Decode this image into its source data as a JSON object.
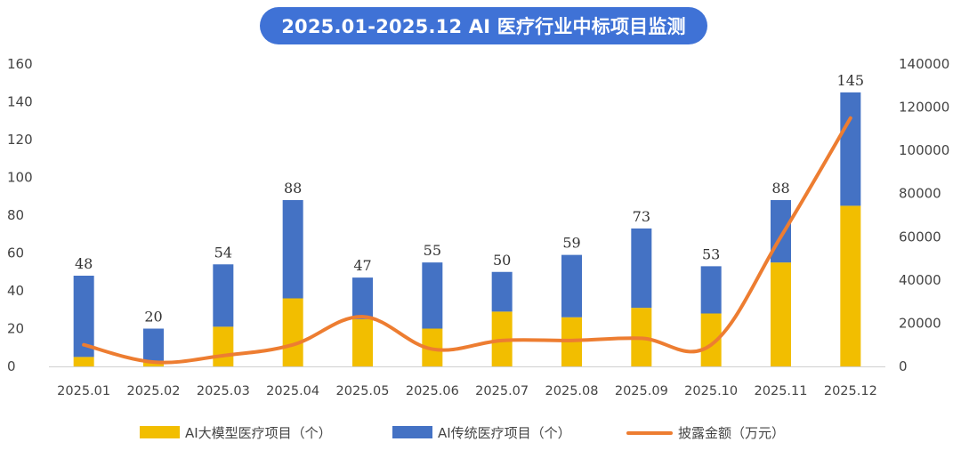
{
  "chart_data": {
    "type": "bar",
    "title": "2025.01-2025.12 AI 医疗行业中标项目监测",
    "categories": [
      "2025.01",
      "2025.02",
      "2025.03",
      "2025.04",
      "2025.05",
      "2025.06",
      "2025.07",
      "2025.08",
      "2025.09",
      "2025.10",
      "2025.11",
      "2025.12"
    ],
    "series": [
      {
        "name": "AI大模型医疗项目（个）",
        "type": "bar",
        "stack": "projects",
        "axis": "left",
        "color": "#F2BE00",
        "values": [
          5,
          3,
          21,
          36,
          25,
          20,
          29,
          26,
          31,
          28,
          55,
          85
        ]
      },
      {
        "name": "AI传统医疗项目（个）",
        "type": "bar",
        "stack": "projects",
        "axis": "left",
        "color": "#4472C4",
        "values": [
          43,
          17,
          33,
          52,
          22,
          35,
          21,
          33,
          42,
          25,
          33,
          60
        ]
      },
      {
        "name": "披露金额（万元）",
        "type": "line",
        "smooth": true,
        "axis": "right",
        "color": "#ED7D31",
        "values": [
          10000,
          2000,
          5000,
          10000,
          23000,
          8000,
          12000,
          12000,
          13000,
          10000,
          60000,
          115000
        ]
      }
    ],
    "totals": [
      48,
      20,
      54,
      88,
      47,
      55,
      50,
      59,
      73,
      53,
      88,
      145
    ],
    "ylim_left": [
      0,
      160
    ],
    "yticks_left": [
      "0",
      "20",
      "40",
      "60",
      "80",
      "100",
      "120",
      "140",
      "160"
    ],
    "ylim_right": [
      0,
      140000
    ],
    "yticks_right": [
      "0",
      "20000",
      "40000",
      "60000",
      "80000",
      "100000",
      "120000",
      "140000"
    ],
    "legend_position": "bottom",
    "grid": false
  }
}
